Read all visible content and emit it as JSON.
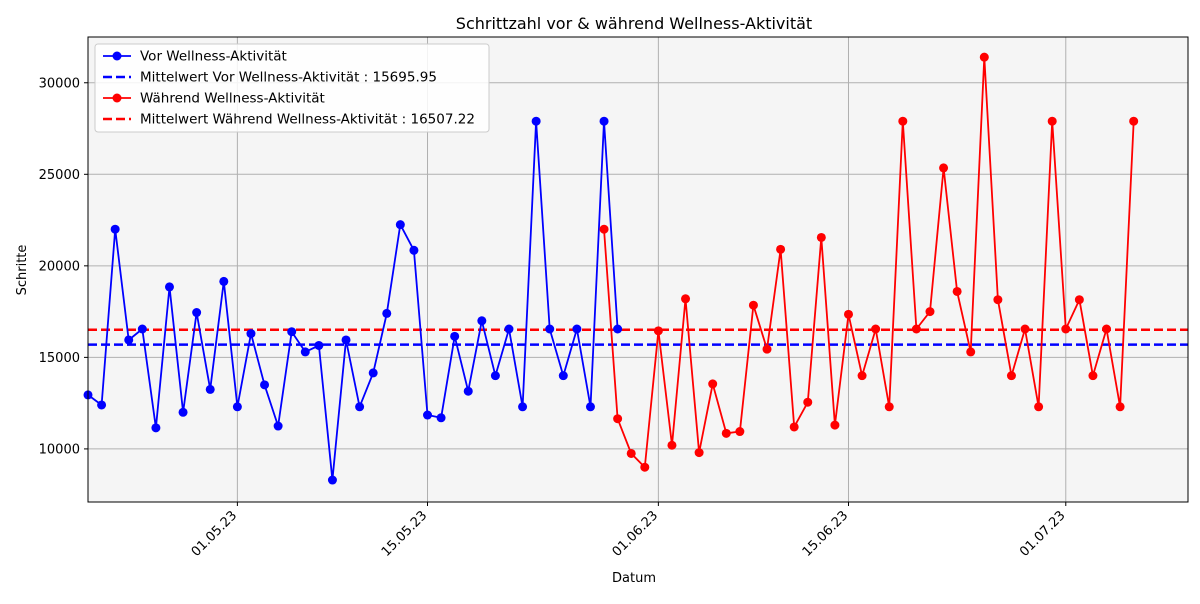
{
  "chart_data": {
    "type": "line",
    "title": "Schrittzahl vor & während Wellness-Aktivität",
    "xlabel": "Datum",
    "ylabel": "Schritte",
    "x_range": [
      "2023-04-20",
      "2023-07-10"
    ],
    "y_range": [
      7100,
      32500
    ],
    "x_ticks": [
      {
        "date": "2023-05-01",
        "label": "01.05.23"
      },
      {
        "date": "2023-05-15",
        "label": "15.05.23"
      },
      {
        "date": "2023-06-01",
        "label": "01.06.23"
      },
      {
        "date": "2023-06-15",
        "label": "15.06.23"
      },
      {
        "date": "2023-07-01",
        "label": "01.07.23"
      }
    ],
    "y_ticks": [
      10000,
      15000,
      20000,
      25000,
      30000
    ],
    "grid": true,
    "legend_position": "top-left",
    "series": [
      {
        "name": "Vor Wellness-Aktivität",
        "color": "#0000ff",
        "points": [
          [
            "2023-04-20",
            12950
          ],
          [
            "2023-04-21",
            12400
          ],
          [
            "2023-04-22",
            22000
          ],
          [
            "2023-04-23",
            15950
          ],
          [
            "2023-04-24",
            16550
          ],
          [
            "2023-04-25",
            11150
          ],
          [
            "2023-04-26",
            18850
          ],
          [
            "2023-04-27",
            12000
          ],
          [
            "2023-04-28",
            17450
          ],
          [
            "2023-04-29",
            13250
          ],
          [
            "2023-04-30",
            19150
          ],
          [
            "2023-05-01",
            12300
          ],
          [
            "2023-05-02",
            16300
          ],
          [
            "2023-05-03",
            13500
          ],
          [
            "2023-05-04",
            11250
          ],
          [
            "2023-05-05",
            16400
          ],
          [
            "2023-05-06",
            15300
          ],
          [
            "2023-05-07",
            15650
          ],
          [
            "2023-05-08",
            8300
          ],
          [
            "2023-05-09",
            15950
          ],
          [
            "2023-05-10",
            12300
          ],
          [
            "2023-05-11",
            14150
          ],
          [
            "2023-05-12",
            17400
          ],
          [
            "2023-05-13",
            22250
          ],
          [
            "2023-05-14",
            20850
          ],
          [
            "2023-05-15",
            11850
          ],
          [
            "2023-05-16",
            11700
          ],
          [
            "2023-05-17",
            16150
          ],
          [
            "2023-05-18",
            13150
          ],
          [
            "2023-05-19",
            17000
          ],
          [
            "2023-05-20",
            14000
          ],
          [
            "2023-05-21",
            16550
          ],
          [
            "2023-05-22",
            12300
          ],
          [
            "2023-05-23",
            27900
          ],
          [
            "2023-05-24",
            16550
          ],
          [
            "2023-05-25",
            14000
          ],
          [
            "2023-05-26",
            16550
          ],
          [
            "2023-05-27",
            12300
          ],
          [
            "2023-05-28",
            27900
          ],
          [
            "2023-05-29",
            16550
          ]
        ]
      },
      {
        "name": "Mittelwert Vor Wellness-Aktivität : 15695.95",
        "color": "#0000ff",
        "style": "dashed",
        "value": 15695.95
      },
      {
        "name": "Während Wellness-Aktivität",
        "color": "#ff0000",
        "points": [
          [
            "2023-05-28",
            22000
          ],
          [
            "2023-05-29",
            11650
          ],
          [
            "2023-05-30",
            9750
          ],
          [
            "2023-05-31",
            9000
          ],
          [
            "2023-06-01",
            16450
          ],
          [
            "2023-06-02",
            10200
          ],
          [
            "2023-06-03",
            18200
          ],
          [
            "2023-06-04",
            9800
          ],
          [
            "2023-06-05",
            13550
          ],
          [
            "2023-06-06",
            10850
          ],
          [
            "2023-06-07",
            10950
          ],
          [
            "2023-06-08",
            17850
          ],
          [
            "2023-06-09",
            15450
          ],
          [
            "2023-06-10",
            20900
          ],
          [
            "2023-06-11",
            11200
          ],
          [
            "2023-06-12",
            12550
          ],
          [
            "2023-06-13",
            21550
          ],
          [
            "2023-06-14",
            11300
          ],
          [
            "2023-06-15",
            17350
          ],
          [
            "2023-06-16",
            14000
          ],
          [
            "2023-06-17",
            16550
          ],
          [
            "2023-06-18",
            12300
          ],
          [
            "2023-06-19",
            27900
          ],
          [
            "2023-06-20",
            16550
          ],
          [
            "2023-06-21",
            17500
          ],
          [
            "2023-06-22",
            25350
          ],
          [
            "2023-06-23",
            18600
          ],
          [
            "2023-06-24",
            15300
          ],
          [
            "2023-06-25",
            31400
          ],
          [
            "2023-06-26",
            18150
          ],
          [
            "2023-06-27",
            14000
          ],
          [
            "2023-06-28",
            16550
          ],
          [
            "2023-06-29",
            12300
          ],
          [
            "2023-06-30",
            27900
          ],
          [
            "2023-07-01",
            16550
          ],
          [
            "2023-07-02",
            18150
          ],
          [
            "2023-07-03",
            14000
          ],
          [
            "2023-07-04",
            16550
          ],
          [
            "2023-07-05",
            12300
          ],
          [
            "2023-07-06",
            27900
          ]
        ]
      },
      {
        "name": "Mittelwert Während Wellness-Aktivität : 16507.22",
        "color": "#ff0000",
        "style": "dashed",
        "value": 16507.22
      }
    ]
  },
  "colors": {
    "plot_background": "#f5f5f5",
    "grid": "#b0b0b0"
  }
}
